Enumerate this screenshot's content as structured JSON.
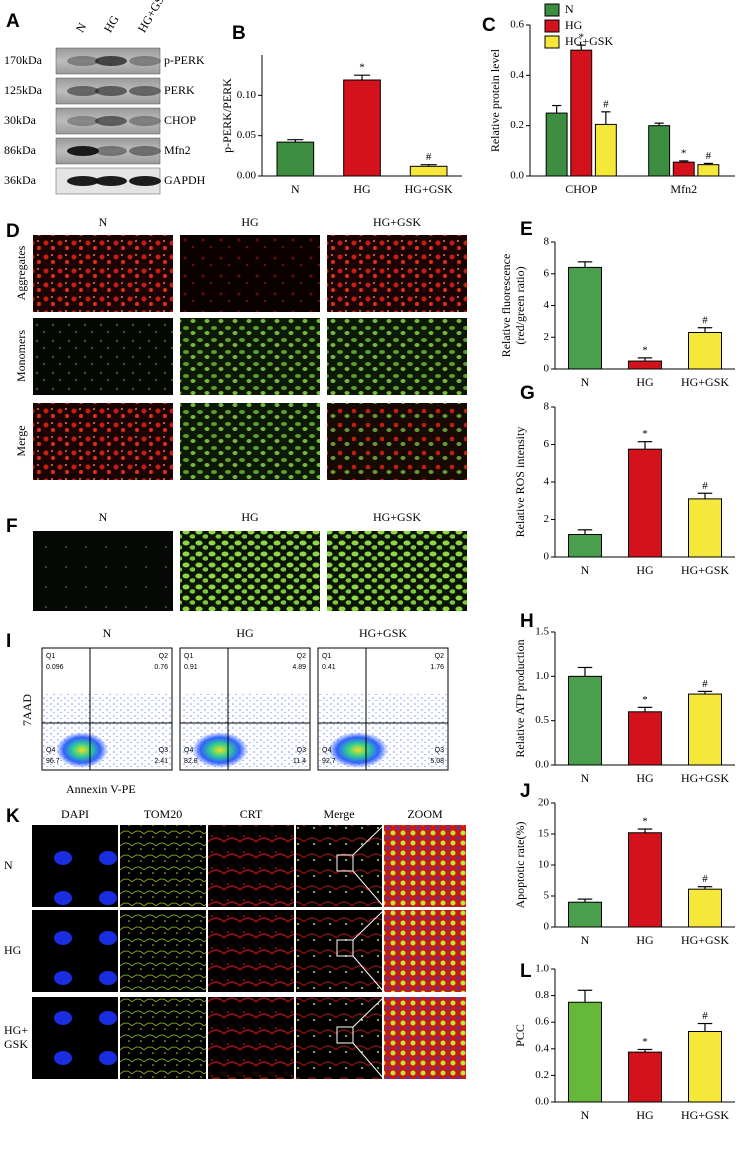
{
  "blot": {
    "panel": "A",
    "lanes": [
      "N",
      "HG",
      "HG+GSK"
    ],
    "rows": [
      {
        "size": "170kDa",
        "protein": "p-PERK"
      },
      {
        "size": "125kDa",
        "protein": "PERK"
      },
      {
        "size": "30kDa",
        "protein": "CHOP"
      },
      {
        "size": "86kDa",
        "protein": "Mfn2"
      },
      {
        "size": "36kDa",
        "protein": "GAPDH"
      }
    ]
  },
  "chart_data": [
    {
      "type": "bar",
      "panel": "B",
      "ylabel": [
        "p-PERK/PERK"
      ],
      "categories": [
        "N",
        "HG",
        "HG+GSK"
      ],
      "values": [
        0.042,
        0.119,
        0.012
      ],
      "errors": [
        0.003,
        0.006,
        0.002
      ],
      "markers": [
        null,
        "*",
        "#"
      ],
      "colors": [
        "#3e8e41",
        "#d3121c",
        "#f6e83a"
      ],
      "ylim": [
        0,
        0.15
      ],
      "yticks": [
        {
          "value": 0,
          "label": "0.00"
        },
        {
          "value": 0.05,
          "label": "0.05"
        },
        {
          "value": 0.1,
          "label": "0.10"
        }
      ]
    },
    {
      "type": "bar",
      "panel": "C",
      "ylabel": [
        "Relative protein level"
      ],
      "categories": [
        "CHOP",
        "Mfn2"
      ],
      "series": [
        {
          "name": "N",
          "color": "#3e8e41",
          "values": [
            0.25,
            0.2
          ],
          "errors": [
            0.03,
            0.01
          ],
          "markers": [
            null,
            null
          ]
        },
        {
          "name": "HG",
          "color": "#d3121c",
          "values": [
            0.5,
            0.055
          ],
          "errors": [
            0.02,
            0.005
          ],
          "markers": [
            "*",
            "*"
          ]
        },
        {
          "name": "HG+GSK",
          "color": "#f6e83a",
          "values": [
            0.205,
            0.045
          ],
          "errors": [
            0.05,
            0.005
          ],
          "markers": [
            "#",
            "#"
          ]
        }
      ],
      "ylim": [
        0,
        0.6
      ],
      "yticks": [
        {
          "value": 0,
          "label": "0.0"
        },
        {
          "value": 0.2,
          "label": "0.2"
        },
        {
          "value": 0.4,
          "label": "0.4"
        },
        {
          "value": 0.6,
          "label": "0.6"
        }
      ]
    },
    {
      "type": "bar",
      "panel": "E",
      "ylabel": [
        "Relative fluorescence",
        "(red/green ratio)"
      ],
      "categories": [
        "N",
        "HG",
        "HG+GSK"
      ],
      "values": [
        6.4,
        0.5,
        2.3
      ],
      "errors": [
        0.35,
        0.2,
        0.3
      ],
      "markers": [
        null,
        "*",
        "#"
      ],
      "colors": [
        "#4a9e4c",
        "#d3121c",
        "#f6e83a"
      ],
      "ylim": [
        0,
        8
      ],
      "yticks": [
        0,
        2,
        4,
        6,
        8
      ]
    },
    {
      "type": "bar",
      "panel": "G",
      "ylabel": [
        "Relative ROS intensity"
      ],
      "categories": [
        "N",
        "HG",
        "HG+GSK"
      ],
      "values": [
        1.2,
        5.75,
        3.1
      ],
      "errors": [
        0.25,
        0.4,
        0.3
      ],
      "markers": [
        null,
        "*",
        "#"
      ],
      "colors": [
        "#4a9e4c",
        "#d3121c",
        "#f6e83a"
      ],
      "ylim": [
        0,
        8
      ],
      "yticks": [
        0,
        2,
        4,
        6,
        8
      ]
    },
    {
      "type": "bar",
      "panel": "H",
      "ylabel": [
        "Relative ATP production"
      ],
      "categories": [
        "N",
        "HG",
        "HG+GSK"
      ],
      "values": [
        1.0,
        0.6,
        0.8
      ],
      "errors": [
        0.1,
        0.05,
        0.03
      ],
      "markers": [
        null,
        "*",
        "#"
      ],
      "colors": [
        "#4a9e4c",
        "#d3121c",
        "#f6e83a"
      ],
      "ylim": [
        0,
        1.5
      ],
      "yticks": [
        {
          "value": 0,
          "label": "0.0"
        },
        {
          "value": 0.5,
          "label": "0.5"
        },
        {
          "value": 1,
          "label": "1.0"
        },
        {
          "value": 1.5,
          "label": "1.5"
        }
      ]
    },
    {
      "type": "bar",
      "panel": "J",
      "ylabel": [
        "Apoptotic rate(%)"
      ],
      "categories": [
        "N",
        "HG",
        "HG+GSK"
      ],
      "values": [
        4.0,
        15.2,
        6.1
      ],
      "errors": [
        0.5,
        0.6,
        0.4
      ],
      "markers": [
        null,
        "*",
        "#"
      ],
      "colors": [
        "#4a9e4c",
        "#d3121c",
        "#f6e83a"
      ],
      "ylim": [
        0,
        20
      ],
      "yticks": [
        0,
        5,
        10,
        15,
        20
      ]
    },
    {
      "type": "bar",
      "panel": "L",
      "ylabel": [
        "PCC"
      ],
      "categories": [
        "N",
        "HG",
        "HG+GSK"
      ],
      "values": [
        0.75,
        0.375,
        0.53
      ],
      "errors": [
        0.09,
        0.02,
        0.06
      ],
      "markers": [
        null,
        "*",
        "#"
      ],
      "colors": [
        "#66b83a",
        "#d3121c",
        "#f6e83a"
      ],
      "ylim": [
        0,
        1
      ],
      "yticks": [
        {
          "value": 0,
          "label": "0.0"
        },
        {
          "value": 0.2,
          "label": "0.2"
        },
        {
          "value": 0.4,
          "label": "0.4"
        },
        {
          "value": 0.6,
          "label": "0.6"
        },
        {
          "value": 0.8,
          "label": "0.8"
        },
        {
          "value": 1,
          "label": "1.0"
        }
      ]
    }
  ],
  "images_d": {
    "panel": "D",
    "columns": [
      "N",
      "HG",
      "HG+GSK"
    ],
    "rows": [
      "Aggregates",
      "Monomers",
      "Merge"
    ]
  },
  "images_f": {
    "panel": "F",
    "columns": [
      "N",
      "HG",
      "HG+GSK"
    ]
  },
  "flow": {
    "panel": "I",
    "columns": [
      "N",
      "HG",
      "HG+GSK"
    ],
    "quadrant_names": [
      "Q1",
      "Q2",
      "Q3",
      "Q4"
    ],
    "plots": [
      [
        0.096,
        0.76,
        2.41,
        96.7
      ],
      [
        0.91,
        4.89,
        11.4,
        82.8
      ],
      [
        0.41,
        1.76,
        5.08,
        92.7
      ]
    ],
    "xlabel": "Annexin V-PE",
    "ylabel": "7AAD"
  },
  "confocal": {
    "panel": "K",
    "columns": [
      "DAPI",
      "TOM20",
      "CRT",
      "Merge",
      "ZOOM"
    ],
    "rows": [
      [
        "N"
      ],
      [
        "HG"
      ],
      [
        "HG+",
        "GSK"
      ]
    ]
  }
}
